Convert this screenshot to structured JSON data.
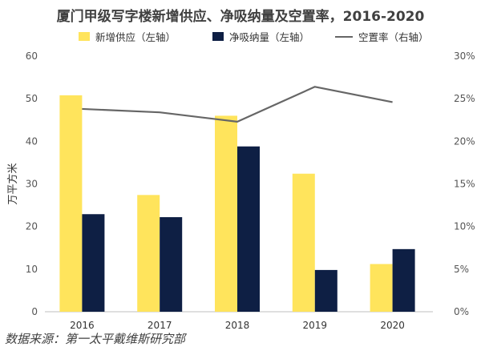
{
  "title": "厦门甲级写字楼新增供应、净吸纳量及空置率，2016-2020",
  "source": "数据来源：第一太平戴维斯研究部",
  "colors": {
    "supply": "#FFE45C",
    "absorption": "#0E1F44",
    "vacancy": "#666666",
    "grid": "#D9D9D9"
  },
  "chart_data": {
    "type": "bar",
    "categories": [
      "2016",
      "2017",
      "2018",
      "2019",
      "2020"
    ],
    "series": [
      {
        "name": "新增供应（左轴）",
        "type": "bar",
        "axis": "left",
        "values": [
          50.8,
          27.4,
          46.0,
          32.4,
          11.2
        ]
      },
      {
        "name": "净吸纳量（左轴）",
        "type": "bar",
        "axis": "left",
        "values": [
          22.9,
          22.2,
          38.8,
          9.8,
          14.7
        ]
      },
      {
        "name": "空置率（右轴）",
        "type": "line",
        "axis": "right",
        "values": [
          0.238,
          0.234,
          0.223,
          0.264,
          0.246
        ]
      }
    ],
    "ylabel": "万平方米",
    "ylim": [
      0,
      60
    ],
    "yticks": [
      "0",
      "10",
      "20",
      "30",
      "40",
      "50",
      "60"
    ],
    "y2lim": [
      0,
      0.3
    ],
    "y2ticks": [
      "0%",
      "5%",
      "10%",
      "15%",
      "20%",
      "25%",
      "30%"
    ],
    "legend_position": "top",
    "grid": false
  }
}
